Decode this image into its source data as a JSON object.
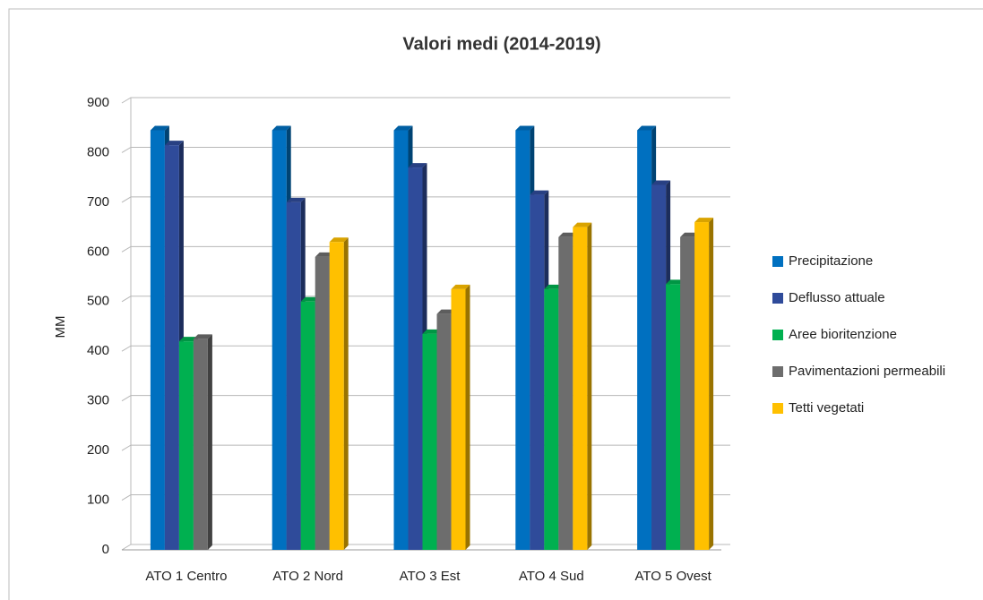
{
  "chart_data": {
    "type": "bar",
    "title": "Valori medi (2014-2019)",
    "y_label": "MM",
    "categories": [
      "ATO 1 Centro",
      "ATO 2 Nord",
      "ATO 3  Est",
      "ATO 4 Sud",
      "ATO 5 Ovest"
    ],
    "series": [
      {
        "name": "Precipitazione",
        "color": "#0070c0",
        "values": [
          845,
          845,
          845,
          845,
          845
        ]
      },
      {
        "name": "Deflusso attuale",
        "color": "#2f4b9a",
        "values": [
          815,
          700,
          770,
          715,
          735
        ]
      },
      {
        "name": "Aree bioritenzione",
        "color": "#00b050",
        "values": [
          420,
          500,
          435,
          525,
          535
        ]
      },
      {
        "name": "Pavimentazioni permeabili",
        "color": "#6d6d6d",
        "values": [
          425,
          590,
          475,
          630,
          630
        ]
      },
      {
        "name": "Tetti vegetati",
        "color": "#ffc000",
        "values": [
          null,
          620,
          525,
          650,
          660
        ]
      }
    ],
    "ylim": [
      0,
      900
    ],
    "yticks": [
      0,
      100,
      200,
      300,
      400,
      500,
      600,
      700,
      800,
      900
    ],
    "grid": true,
    "legend": "right"
  }
}
